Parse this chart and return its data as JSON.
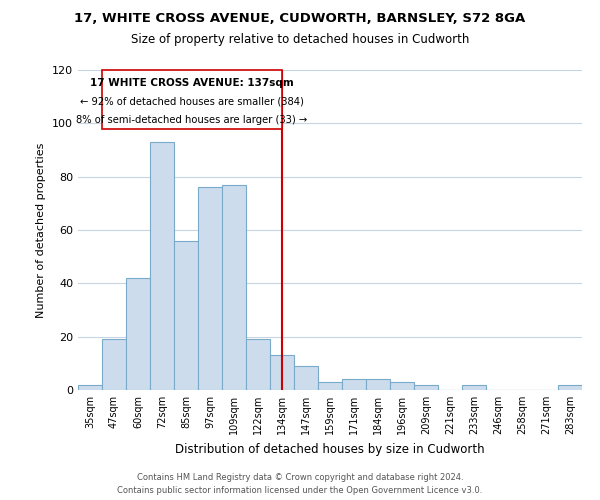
{
  "title": "17, WHITE CROSS AVENUE, CUDWORTH, BARNSLEY, S72 8GA",
  "subtitle": "Size of property relative to detached houses in Cudworth",
  "xlabel": "Distribution of detached houses by size in Cudworth",
  "ylabel": "Number of detached properties",
  "bar_labels": [
    "35sqm",
    "47sqm",
    "60sqm",
    "72sqm",
    "85sqm",
    "97sqm",
    "109sqm",
    "122sqm",
    "134sqm",
    "147sqm",
    "159sqm",
    "171sqm",
    "184sqm",
    "196sqm",
    "209sqm",
    "221sqm",
    "233sqm",
    "246sqm",
    "258sqm",
    "271sqm",
    "283sqm"
  ],
  "bar_values": [
    2,
    19,
    42,
    93,
    56,
    76,
    77,
    19,
    13,
    9,
    3,
    4,
    4,
    3,
    2,
    0,
    2,
    0,
    0,
    0,
    2
  ],
  "bar_color": "#ccdcec",
  "bar_edge_color": "#7aaaca",
  "ylim": [
    0,
    120
  ],
  "yticks": [
    0,
    20,
    40,
    60,
    80,
    100,
    120
  ],
  "property_line_x": 8.0,
  "property_line_color": "#cc0000",
  "annotation_title": "17 WHITE CROSS AVENUE: 137sqm",
  "annotation_line1": "← 92% of detached houses are smaller (384)",
  "annotation_line2": "8% of semi-detached houses are larger (33) →",
  "annotation_box_edge": "#cc0000",
  "footnote1": "Contains HM Land Registry data © Crown copyright and database right 2024.",
  "footnote2": "Contains public sector information licensed under the Open Government Licence v3.0.",
  "bg_color": "#ffffff",
  "grid_color": "#c8d4e0"
}
